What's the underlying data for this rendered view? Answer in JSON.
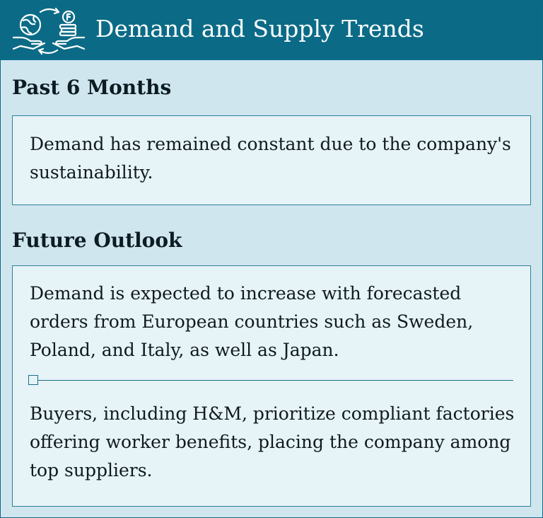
{
  "header": {
    "title": "Demand and Supply Trends",
    "icon": "demand-supply-hands-icon"
  },
  "sections": [
    {
      "title": "Past 6 Months",
      "paragraphs": [
        "Demand has remained constant due to the company's sustainability."
      ]
    },
    {
      "title": "Future Outlook",
      "paragraphs": [
        "Demand is expected to increase with forecasted orders from European countries such as Sweden, Poland, and Italy, as well as Japan.",
        "Buyers, including H&M, prioritize compliant factories offering worker benefits, placing the company among top suppliers."
      ]
    }
  ],
  "colors": {
    "header_bg": "#0b6b87",
    "panel_bg": "#cfe6ef",
    "box_bg": "#e6f3f7",
    "accent": "#2f7f9a"
  }
}
